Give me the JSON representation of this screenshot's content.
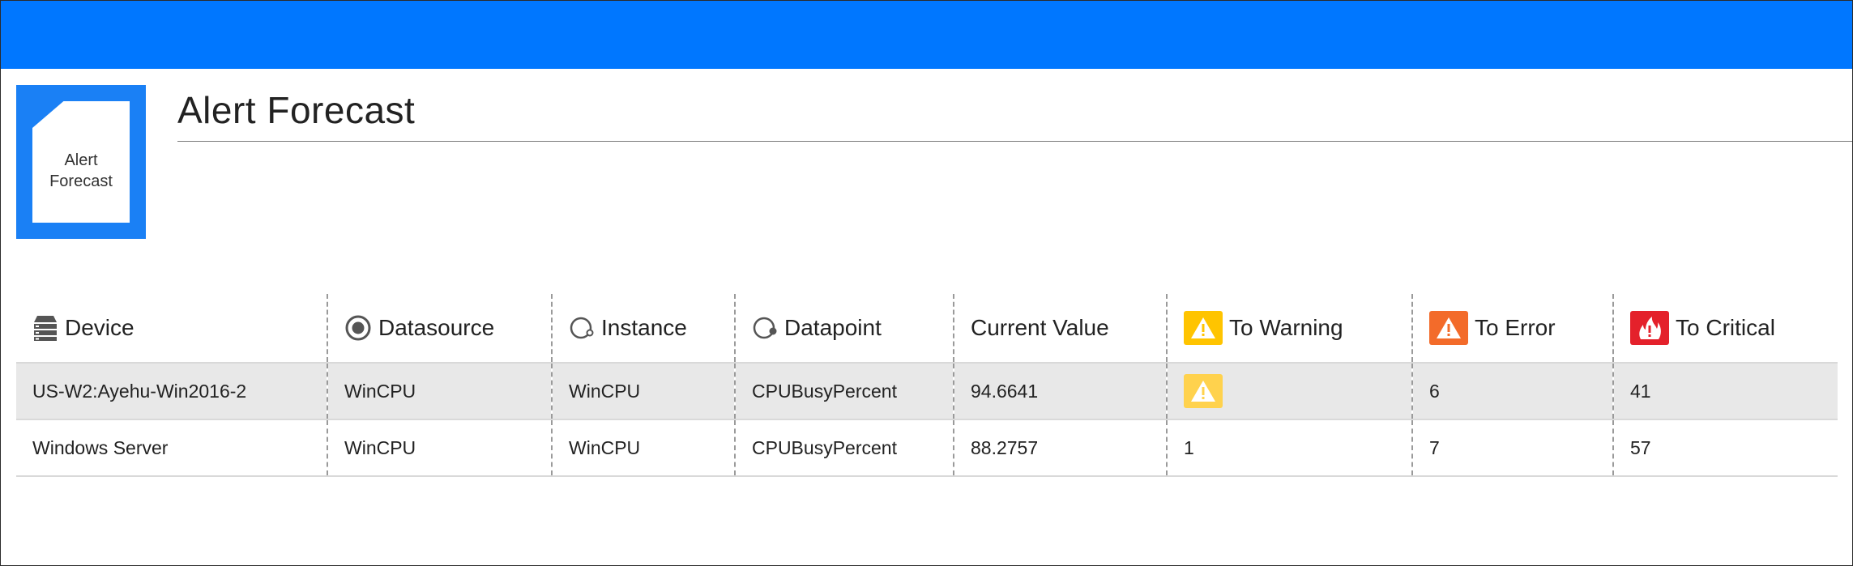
{
  "app": {
    "title": "Alert Forecast",
    "accent_color": "#0077ff",
    "logo": {
      "line1": "Alert",
      "line2": "Forecast",
      "icon": "document-icon"
    }
  },
  "table": {
    "columns": [
      {
        "key": "device",
        "label": "Device",
        "icon": "server-stack-icon"
      },
      {
        "key": "datasource",
        "label": "Datasource",
        "icon": "radio-target-icon"
      },
      {
        "key": "instance",
        "label": "Instance",
        "icon": "instance-ring-icon"
      },
      {
        "key": "datapoint",
        "label": "Datapoint",
        "icon": "datapoint-ring-icon"
      },
      {
        "key": "current_value",
        "label": "Current Value",
        "icon": ""
      },
      {
        "key": "to_warning",
        "label": "To Warning",
        "icon": "warning-icon",
        "color": "#ffc400"
      },
      {
        "key": "to_error",
        "label": "To Error",
        "icon": "error-icon",
        "color": "#f36b2a"
      },
      {
        "key": "to_critical",
        "label": "To Critical",
        "icon": "critical-fire-icon",
        "color": "#e4212b"
      }
    ],
    "rows": [
      {
        "device": "US-W2:Ayehu-Win2016-2",
        "datasource": "WinCPU",
        "instance": "WinCPU",
        "datapoint": "CPUBusyPercent",
        "current_value": "94.6641",
        "to_warning": "",
        "to_warning_icon": "warning-icon",
        "to_error": "6",
        "to_critical": "41"
      },
      {
        "device": "Windows Server",
        "datasource": "WinCPU",
        "instance": "WinCPU",
        "datapoint": "CPUBusyPercent",
        "current_value": "88.2757",
        "to_warning": "1",
        "to_error": "7",
        "to_critical": "57"
      }
    ]
  }
}
